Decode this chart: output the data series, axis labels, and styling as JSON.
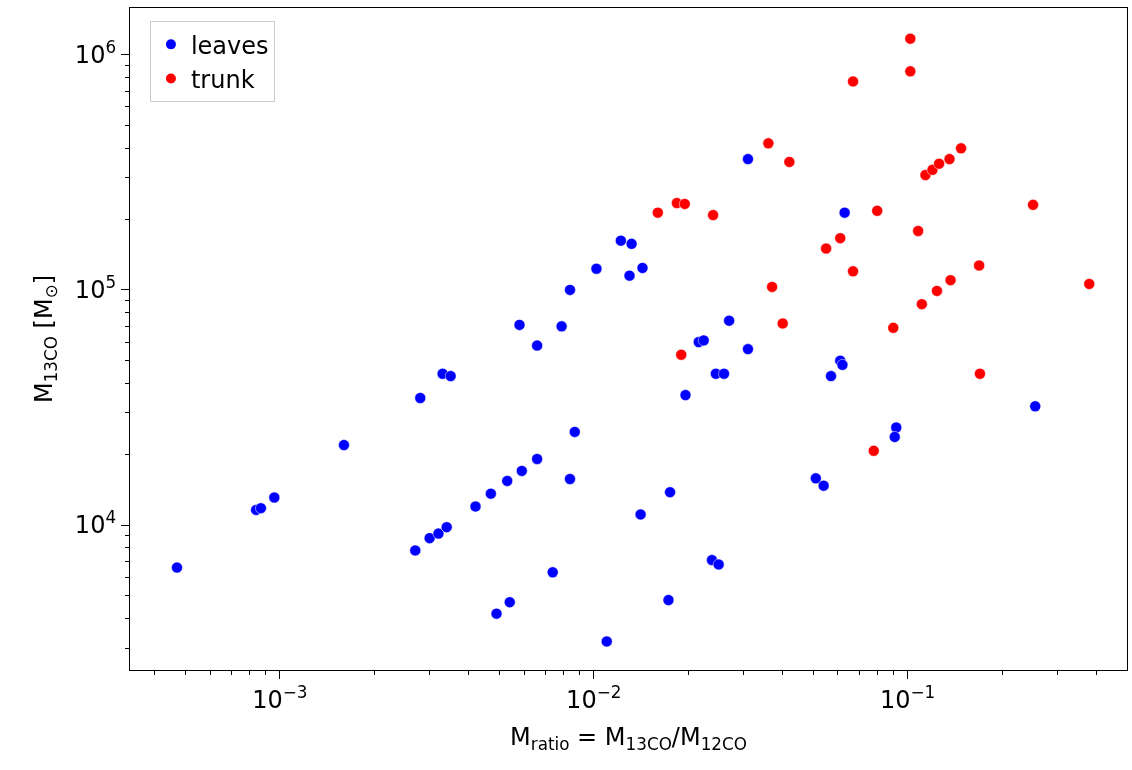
{
  "chart_data": {
    "type": "scatter",
    "xlabel": "M$_{ratio}$ = M$_{13CO}$/M$_{12CO}$",
    "ylabel": "M$_{13CO}$ [M$_{⊙}$]",
    "log": "xy",
    "grid": false,
    "legend": "top left",
    "marker": "circle",
    "xlim": [
      0.000333,
      0.5
    ],
    "ylim": [
      2420,
      1580000
    ],
    "xticks": [
      {
        "value": 0.0004,
        "label": null
      },
      {
        "value": 0.0005,
        "label": null
      },
      {
        "value": 0.0006,
        "label": null
      },
      {
        "value": 0.0007,
        "label": null
      },
      {
        "value": 0.0008,
        "label": null
      },
      {
        "value": 0.0009,
        "label": null
      },
      {
        "value": 0.001,
        "label": "10$^{−3}$"
      },
      {
        "value": 0.002,
        "label": null
      },
      {
        "value": 0.003,
        "label": null
      },
      {
        "value": 0.004,
        "label": null
      },
      {
        "value": 0.005,
        "label": null
      },
      {
        "value": 0.006,
        "label": null
      },
      {
        "value": 0.007,
        "label": null
      },
      {
        "value": 0.008,
        "label": null
      },
      {
        "value": 0.009,
        "label": null
      },
      {
        "value": 0.01,
        "label": "10$^{−2}$"
      },
      {
        "value": 0.02,
        "label": null
      },
      {
        "value": 0.03,
        "label": null
      },
      {
        "value": 0.04,
        "label": null
      },
      {
        "value": 0.05,
        "label": null
      },
      {
        "value": 0.06,
        "label": null
      },
      {
        "value": 0.07,
        "label": null
      },
      {
        "value": 0.08,
        "label": null
      },
      {
        "value": 0.09,
        "label": null
      },
      {
        "value": 0.1,
        "label": "10$^{−1}$"
      },
      {
        "value": 0.2,
        "label": null
      },
      {
        "value": 0.3,
        "label": null
      },
      {
        "value": 0.4,
        "label": null
      }
    ],
    "yticks": [
      {
        "value": 3000,
        "label": null
      },
      {
        "value": 4000,
        "label": null
      },
      {
        "value": 5000,
        "label": null
      },
      {
        "value": 6000,
        "label": null
      },
      {
        "value": 7000,
        "label": null
      },
      {
        "value": 8000,
        "label": null
      },
      {
        "value": 9000,
        "label": null
      },
      {
        "value": 10000,
        "label": "10$^{4}$"
      },
      {
        "value": 20000,
        "label": null
      },
      {
        "value": 30000,
        "label": null
      },
      {
        "value": 40000,
        "label": null
      },
      {
        "value": 50000,
        "label": null
      },
      {
        "value": 60000,
        "label": null
      },
      {
        "value": 70000,
        "label": null
      },
      {
        "value": 80000,
        "label": null
      },
      {
        "value": 90000,
        "label": null
      },
      {
        "value": 100000,
        "label": "10$^{5}$"
      },
      {
        "value": 200000,
        "label": null
      },
      {
        "value": 300000,
        "label": null
      },
      {
        "value": 400000,
        "label": null
      },
      {
        "value": 500000,
        "label": null
      },
      {
        "value": 600000,
        "label": null
      },
      {
        "value": 700000,
        "label": null
      },
      {
        "value": 800000,
        "label": null
      },
      {
        "value": 900000,
        "label": null
      },
      {
        "value": 1000000,
        "label": "10$^{6}$"
      }
    ],
    "series": [
      {
        "name": "leaves",
        "color": "#0000ff",
        "x": [
          0.00047,
          0.00084,
          0.00087,
          0.00096,
          0.0016,
          0.0027,
          0.0028,
          0.003,
          0.0032,
          0.0034,
          0.0033,
          0.0035,
          0.0042,
          0.0047,
          0.0049,
          0.0053,
          0.0054,
          0.0059,
          0.0058,
          0.0066,
          0.0066,
          0.0074,
          0.0079,
          0.0084,
          0.0084,
          0.0087,
          0.0102,
          0.011,
          0.0122,
          0.0132,
          0.013,
          0.0143,
          0.0141,
          0.0175,
          0.0173,
          0.0196,
          0.0216,
          0.0224,
          0.0238,
          0.025,
          0.0245,
          0.026,
          0.027,
          0.031,
          0.031,
          0.057,
          0.051,
          0.054,
          0.061,
          0.062,
          0.063,
          0.092,
          0.091,
          0.255
        ],
        "values": [
          6600,
          11600,
          11800,
          13100,
          21900,
          7800,
          34700,
          8800,
          9200,
          9800,
          44000,
          43000,
          12000,
          13600,
          4200,
          15400,
          4700,
          17000,
          71000,
          19100,
          58000,
          6300,
          70000,
          100000,
          15700,
          24900,
          123000,
          3200,
          162000,
          157000,
          115000,
          124000,
          11100,
          13800,
          4800,
          35700,
          60000,
          61000,
          7100,
          6800,
          44000,
          44000,
          74000,
          56000,
          360000,
          43000,
          15800,
          14700,
          50000,
          48000,
          213000,
          26000,
          23700,
          32000
        ]
      },
      {
        "name": "trunk",
        "color": "#ff0000",
        "x": [
          0.016,
          0.0184,
          0.0195,
          0.019,
          0.024,
          0.036,
          0.037,
          0.04,
          0.042,
          0.055,
          0.061,
          0.067,
          0.067,
          0.08,
          0.078,
          0.09,
          0.102,
          0.102,
          0.108,
          0.111,
          0.114,
          0.12,
          0.126,
          0.124,
          0.136,
          0.137,
          0.148,
          0.169,
          0.17,
          0.251,
          0.379
        ],
        "values": [
          213000,
          234000,
          232000,
          53000,
          208000,
          420000,
          103000,
          72000,
          350000,
          150000,
          166000,
          770000,
          120000,
          217000,
          20700,
          69000,
          1170000,
          850000,
          178000,
          87000,
          308000,
          324000,
          344000,
          99000,
          360000,
          110000,
          400000,
          127000,
          44000,
          230000,
          106000
        ]
      }
    ]
  }
}
